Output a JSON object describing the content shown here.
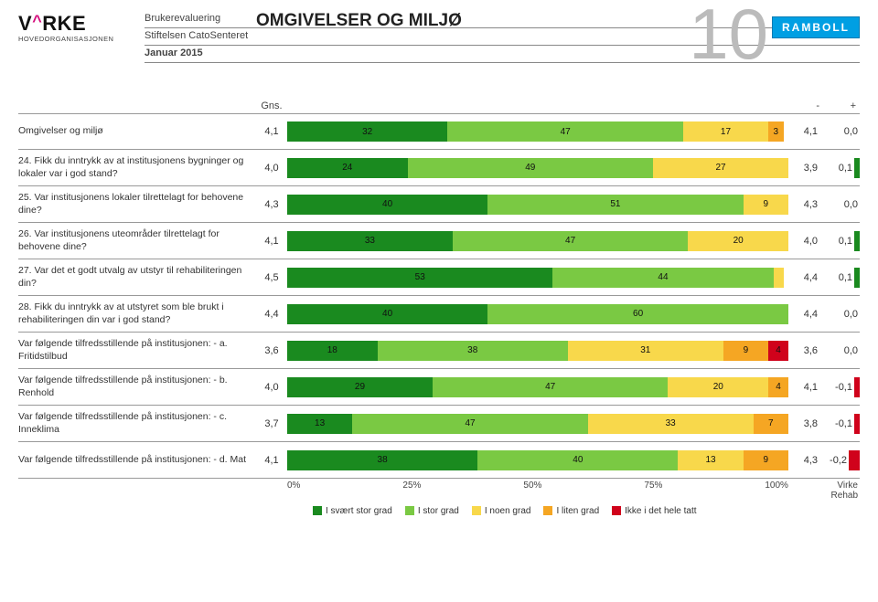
{
  "header": {
    "brand": "VIRKE",
    "brand_sub": "HOVEDORGANISASJONEN",
    "line1": "Brukerevaluering",
    "line2": "Stiftelsen CatoSenteret",
    "line3": "Januar 2015",
    "section_title": "OMGIVELSER OG MILJØ",
    "page_number": "10",
    "ramboll": "RAMBOLL"
  },
  "columns": {
    "gns": "Gns.",
    "minus": "-",
    "plus": "+"
  },
  "colors": {
    "c1": "#1a8a1f",
    "c2": "#7ac943",
    "c3": "#f8d84b",
    "c4": "#f5a623",
    "c5": "#d0021b",
    "plus_pos": "#1a8a1f",
    "plus_neg": "#d0021b"
  },
  "plus_axis_max": 0.5,
  "rows": [
    {
      "q": "Omgivelser og miljø",
      "gns": "4,1",
      "segs": [
        32,
        47,
        17,
        3,
        0
      ],
      "minus": "4,1",
      "plus": 0.0,
      "plus_label": "0,0"
    },
    {
      "q": "24. Fikk du inntrykk av at institusjonens bygninger og lokaler var i god stand?",
      "gns": "4,0",
      "segs": [
        24,
        49,
        27,
        0,
        0
      ],
      "minus": "3,9",
      "plus": 0.1,
      "plus_label": "0,1"
    },
    {
      "q": "25. Var institusjonens lokaler tilrettelagt for behovene dine?",
      "gns": "4,3",
      "segs": [
        40,
        51,
        9,
        0,
        0
      ],
      "minus": "4,3",
      "plus": 0.0,
      "plus_label": "0,0"
    },
    {
      "q": "26. Var institusjonens uteområder tilrettelagt for behovene dine?",
      "gns": "4,1",
      "segs": [
        33,
        47,
        20,
        0,
        0
      ],
      "minus": "4,0",
      "plus": 0.1,
      "plus_label": "0,1"
    },
    {
      "q": "27. Var det et godt utvalg av utstyr til rehabiliteringen din?",
      "gns": "4,5",
      "segs": [
        53,
        44,
        2,
        0,
        0
      ],
      "minus": "4,4",
      "plus": 0.1,
      "plus_label": "0,1"
    },
    {
      "q": "28. Fikk du inntrykk av at utstyret som ble brukt i rehabiliteringen din var i god stand?",
      "gns": "4,4",
      "segs": [
        40,
        60,
        0,
        0,
        0
      ],
      "minus": "4,4",
      "plus": 0.0,
      "plus_label": "0,0"
    },
    {
      "q": "Var følgende tilfredsstillende på institusjonen: - a. Fritidstilbud",
      "gns": "3,6",
      "segs": [
        18,
        38,
        31,
        9,
        4
      ],
      "minus": "3,6",
      "plus": 0.0,
      "plus_label": "0,0"
    },
    {
      "q": "Var følgende tilfredsstillende på institusjonen: - b. Renhold",
      "gns": "4,0",
      "segs": [
        29,
        47,
        20,
        4,
        0
      ],
      "minus": "4,1",
      "plus": -0.1,
      "plus_label": "-0,1"
    },
    {
      "q": "Var følgende tilfredsstillende på institusjonen: - c. Inneklima",
      "gns": "3,7",
      "segs": [
        13,
        47,
        33,
        7,
        0
      ],
      "minus": "3,8",
      "plus": -0.1,
      "plus_label": "-0,1"
    },
    {
      "q": "Var følgende tilfredsstillende på institusjonen: - d. Mat",
      "gns": "4,1",
      "segs": [
        38,
        40,
        13,
        9,
        0
      ],
      "minus": "4,3",
      "plus": -0.2,
      "plus_label": "-0,2"
    }
  ],
  "axis_ticks": [
    "0%",
    "25%",
    "50%",
    "75%",
    "100%"
  ],
  "axis_plus_label": "Virke Rehab",
  "legend": [
    "I svært stor grad",
    "I stor grad",
    "I noen grad",
    "I liten grad",
    "Ikke i det hele tatt"
  ]
}
